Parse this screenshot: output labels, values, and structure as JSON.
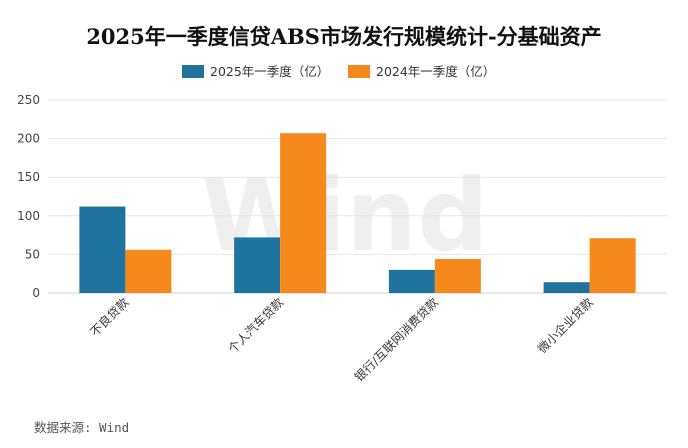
{
  "chart_data": {
    "type": "bar",
    "title": "2025年一季度信贷ABS市场发行规模统计-分基础资产",
    "categories": [
      "不良贷款",
      "个人汽车贷款",
      "银行/互联网消费贷款",
      "微小企业贷款"
    ],
    "series": [
      {
        "name": "2025年一季度（亿）",
        "color": "#21739f",
        "values": [
          112,
          72,
          30,
          14
        ]
      },
      {
        "name": "2024年一季度（亿）",
        "color": "#f5891b",
        "values": [
          56,
          207,
          44,
          71
        ]
      }
    ],
    "ylim": [
      0,
      250
    ],
    "yticks": [
      0,
      50,
      100,
      150,
      200,
      250
    ],
    "grid": true,
    "legend": "top-center"
  },
  "source_text": "数据来源: Wind",
  "watermark_text": "Wind"
}
